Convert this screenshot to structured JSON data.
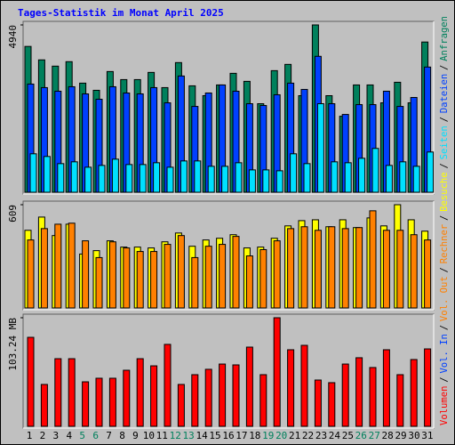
{
  "chart_data": [
    {
      "type": "bar",
      "title": "Tages-Statistik im Monat April 2025",
      "ylim": [
        0,
        4940
      ],
      "yticks": [
        4940
      ],
      "series": [
        {
          "name": "Anfragen",
          "color": "#00805c",
          "values": [
            4305,
            3908,
            3723,
            3855,
            3221,
            3010,
            3564,
            3326,
            3326,
            3538,
            3089,
            3828,
            3142,
            2851,
            3168,
            3511,
            3274,
            2614,
            3590,
            3775,
            2851,
            4940,
            2851,
            2244,
            3168,
            3168,
            2640,
            3247,
            2640,
            4435
          ]
        },
        {
          "name": "Dateien",
          "color": "#0040ff",
          "values": [
            3194,
            3089,
            2983,
            3115,
            2904,
            2746,
            3115,
            2930,
            2904,
            3089,
            2640,
            3432,
            2534,
            2930,
            3168,
            2983,
            2614,
            2561,
            2878,
            3221,
            3036,
            4013,
            2614,
            2297,
            2587,
            2587,
            2983,
            2534,
            2798,
            3696
          ]
        },
        {
          "name": "Seiten",
          "color": "#00e0ff",
          "values": [
            1135,
            1056,
            845,
            898,
            739,
            792,
            977,
            818,
            818,
            871,
            739,
            924,
            924,
            766,
            766,
            871,
            660,
            660,
            634,
            1135,
            845,
            2614,
            898,
            871,
            1003,
            1294,
            792,
            898,
            766,
            1188
          ]
        }
      ]
    },
    {
      "type": "bar",
      "ylim": [
        0,
        609
      ],
      "yticks": [
        609
      ],
      "series": [
        {
          "name": "Besuche",
          "color": "#ffff00",
          "values": [
            458,
            536,
            427,
            494,
            318,
            338,
            396,
            359,
            359,
            354,
            390,
            442,
            364,
            401,
            411,
            432,
            354,
            359,
            411,
            484,
            515,
            520,
            479,
            520,
            474,
            531,
            484,
            609,
            520,
            453
          ]
        },
        {
          "name": "Rechner",
          "color": "#ff8000",
          "values": [
            401,
            468,
            494,
            500,
            396,
            297,
            390,
            354,
            333,
            333,
            375,
            427,
            297,
            364,
            375,
            422,
            307,
            344,
            396,
            468,
            479,
            458,
            479,
            468,
            474,
            573,
            458,
            458,
            432,
            401
          ]
        }
      ]
    },
    {
      "type": "bar",
      "ylim": [
        0,
        103.24
      ],
      "yticks": [
        {
          "value": 103.24,
          "label": "103.24 MB"
        }
      ],
      "categories": [
        "1",
        "2",
        "3",
        "4",
        "5",
        "6",
        "7",
        "8",
        "9",
        "10",
        "11",
        "12",
        "13",
        "14",
        "15",
        "16",
        "17",
        "18",
        "19",
        "20",
        "21",
        "22",
        "23",
        "24",
        "25",
        "26",
        "27",
        "28",
        "29",
        "30",
        "31"
      ],
      "weekend_indices": [
        4,
        5,
        11,
        12,
        18,
        19,
        25,
        26
      ],
      "weekend_color": "#00805c",
      "series": [
        {
          "name": "Volumen",
          "color": "#ff0000",
          "values": [
            84.6,
            39.8,
            64.3,
            64.3,
            42.3,
            45.7,
            45.7,
            53.3,
            64.3,
            57.5,
            77.9,
            39.8,
            49.1,
            54.2,
            59.2,
            58.4,
            75.3,
            49.1,
            103.24,
            72.8,
            77.0,
            44.0,
            41.5,
            59.2,
            65.2,
            55.9,
            72.8,
            49.1,
            63.5,
            73.6,
            null
          ]
        }
      ],
      "legend_only": [
        {
          "name": "Vol. Out",
          "color": "#ff8000"
        },
        {
          "name": "Vol. In",
          "color": "#0040ff"
        }
      ],
      "legend_separator": "/"
    }
  ]
}
